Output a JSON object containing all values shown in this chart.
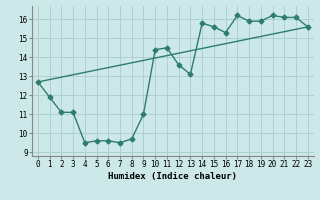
{
  "title": "",
  "xlabel": "Humidex (Indice chaleur)",
  "ylabel": "",
  "bg_color": "#cce8e8",
  "line_color": "#2e7d6e",
  "grid_color": "#aacccc",
  "xlim": [
    -0.5,
    23.5
  ],
  "ylim": [
    8.8,
    16.7
  ],
  "yticks": [
    9,
    10,
    11,
    12,
    13,
    14,
    15,
    16
  ],
  "xticks": [
    0,
    1,
    2,
    3,
    4,
    5,
    6,
    7,
    8,
    9,
    10,
    11,
    12,
    13,
    14,
    15,
    16,
    17,
    18,
    19,
    20,
    21,
    22,
    23
  ],
  "line1_x": [
    0,
    1,
    2,
    3,
    4,
    5,
    6,
    7,
    8,
    9,
    10,
    11,
    12,
    13,
    14,
    15,
    16,
    17,
    18,
    19,
    20,
    21,
    22,
    23
  ],
  "line1_y": [
    12.7,
    11.9,
    11.1,
    11.1,
    9.5,
    9.6,
    9.6,
    9.5,
    9.7,
    11.0,
    14.4,
    14.5,
    13.6,
    13.1,
    15.8,
    15.6,
    15.3,
    16.2,
    15.9,
    15.9,
    16.2,
    16.1,
    16.1,
    15.6
  ],
  "line2_x": [
    0,
    23
  ],
  "line2_y": [
    12.7,
    15.6
  ],
  "marker_size": 2.5,
  "linewidth": 1.0,
  "xlabel_fontsize": 6.5,
  "tick_fontsize": 5.5
}
